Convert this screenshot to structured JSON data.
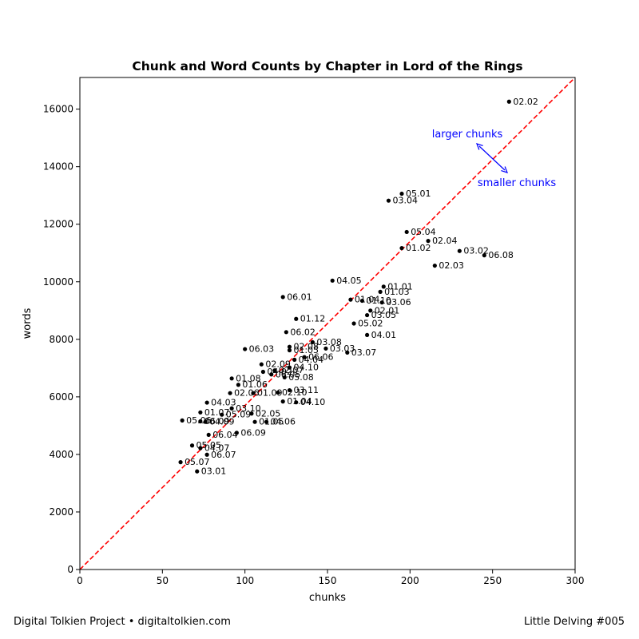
{
  "chart_data": {
    "type": "scatter",
    "title": "Chunk and Word Counts by Chapter in Lord of the Rings",
    "xlabel": "chunks",
    "ylabel": "words",
    "xlim": [
      0,
      300
    ],
    "ylim": [
      0,
      17100
    ],
    "xticks": [
      0,
      50,
      100,
      150,
      200,
      250,
      300
    ],
    "yticks": [
      0,
      2000,
      4000,
      6000,
      8000,
      10000,
      12000,
      14000,
      16000
    ],
    "grid": false,
    "reference_line": {
      "from": [
        0,
        0
      ],
      "to": [
        300,
        17100
      ],
      "style": "dashed",
      "color": "#ff0000"
    },
    "annotations": {
      "larger": {
        "text": "larger chunks",
        "color": "#0000ff"
      },
      "smaller": {
        "text": "smaller chunks",
        "color": "#0000ff"
      }
    },
    "points": [
      {
        "label": "02.02",
        "x": 260,
        "y": 16260
      },
      {
        "label": "05.01",
        "x": 195,
        "y": 13060
      },
      {
        "label": "03.04",
        "x": 187,
        "y": 12820
      },
      {
        "label": "05.04",
        "x": 198,
        "y": 11730
      },
      {
        "label": "02.04",
        "x": 211,
        "y": 11420
      },
      {
        "label": "01.02",
        "x": 195,
        "y": 11170
      },
      {
        "label": "03.02",
        "x": 230,
        "y": 11070
      },
      {
        "label": "06.08",
        "x": 245,
        "y": 10920
      },
      {
        "label": "02.03",
        "x": 215,
        "y": 10560
      },
      {
        "label": "04.05",
        "x": 153,
        "y": 10040
      },
      {
        "label": "01.01",
        "x": 184,
        "y": 9830
      },
      {
        "label": "01.03",
        "x": 182,
        "y": 9650
      },
      {
        "label": "06.01",
        "x": 123,
        "y": 9470
      },
      {
        "label": "01.04",
        "x": 164,
        "y": 9380
      },
      {
        "label": "01.10",
        "x": 171,
        "y": 9340
      },
      {
        "label": "03.06",
        "x": 183,
        "y": 9280
      },
      {
        "label": "02.01",
        "x": 176,
        "y": 9000
      },
      {
        "label": "03.05",
        "x": 174,
        "y": 8840
      },
      {
        "label": "01.12",
        "x": 131,
        "y": 8710
      },
      {
        "label": "05.02",
        "x": 166,
        "y": 8550
      },
      {
        "label": "06.02",
        "x": 125,
        "y": 8250
      },
      {
        "label": "04.01",
        "x": 174,
        "y": 8150
      },
      {
        "label": "03.08",
        "x": 141,
        "y": 7900
      },
      {
        "label": "02.08",
        "x": 127,
        "y": 7740
      },
      {
        "label": "01.05",
        "x": 127,
        "y": 7620
      },
      {
        "label": "03.03",
        "x": 149,
        "y": 7680
      },
      {
        "label": "06.03",
        "x": 100,
        "y": 7660
      },
      {
        "label": "03.07",
        "x": 162,
        "y": 7540
      },
      {
        "label": "06.06",
        "x": 136,
        "y": 7380
      },
      {
        "label": "04.04",
        "x": 130,
        "y": 7290
      },
      {
        "label": "02.09",
        "x": 110,
        "y": 7130
      },
      {
        "label": "04.10",
        "x": 127,
        "y": 7020
      },
      {
        "label": "04.02",
        "x": 111,
        "y": 6870
      },
      {
        "label": "02.07",
        "x": 118,
        "y": 6920
      },
      {
        "label": "06.05",
        "x": 116,
        "y": 6780
      },
      {
        "label": "05.08",
        "x": 124,
        "y": 6680
      },
      {
        "label": "01.08",
        "x": 92,
        "y": 6640
      },
      {
        "label": "01.06",
        "x": 96,
        "y": 6420
      },
      {
        "label": "03.11",
        "x": 127,
        "y": 6230
      },
      {
        "label": "02.06",
        "x": 91,
        "y": 6130
      },
      {
        "label": "01.09",
        "x": 105,
        "y": 6130
      },
      {
        "label": "02.10",
        "x": 120,
        "y": 6150
      },
      {
        "label": "04.03",
        "x": 77,
        "y": 5800
      },
      {
        "label": "01.04",
        "x": 123,
        "y": 5840
      },
      {
        "label": "04.10",
        "x": 131,
        "y": 5810
      },
      {
        "label": "03.10",
        "x": 92,
        "y": 5600
      },
      {
        "label": "01.07",
        "x": 73,
        "y": 5460
      },
      {
        "label": "05.09",
        "x": 86,
        "y": 5380
      },
      {
        "label": "02.05",
        "x": 104,
        "y": 5420
      },
      {
        "label": "05.06",
        "x": 62,
        "y": 5180
      },
      {
        "label": "06.09",
        "x": 73,
        "y": 5150
      },
      {
        "label": "04.09",
        "x": 76,
        "y": 5130
      },
      {
        "label": "01.05",
        "x": 106,
        "y": 5130
      },
      {
        "label": "04.06",
        "x": 113,
        "y": 5130
      },
      {
        "label": "06.04",
        "x": 78,
        "y": 4680
      },
      {
        "label": "06.09",
        "x": 95,
        "y": 4750
      },
      {
        "label": "05.05",
        "x": 68,
        "y": 4310
      },
      {
        "label": "04.07",
        "x": 73,
        "y": 4220
      },
      {
        "label": "06.07",
        "x": 77,
        "y": 3990
      },
      {
        "label": "05.07",
        "x": 61,
        "y": 3730
      },
      {
        "label": "03.01",
        "x": 71,
        "y": 3410
      }
    ]
  },
  "footer": {
    "left": "Digital Tolkien Project • digitaltolkien.com",
    "right": "Little Delving #005"
  }
}
